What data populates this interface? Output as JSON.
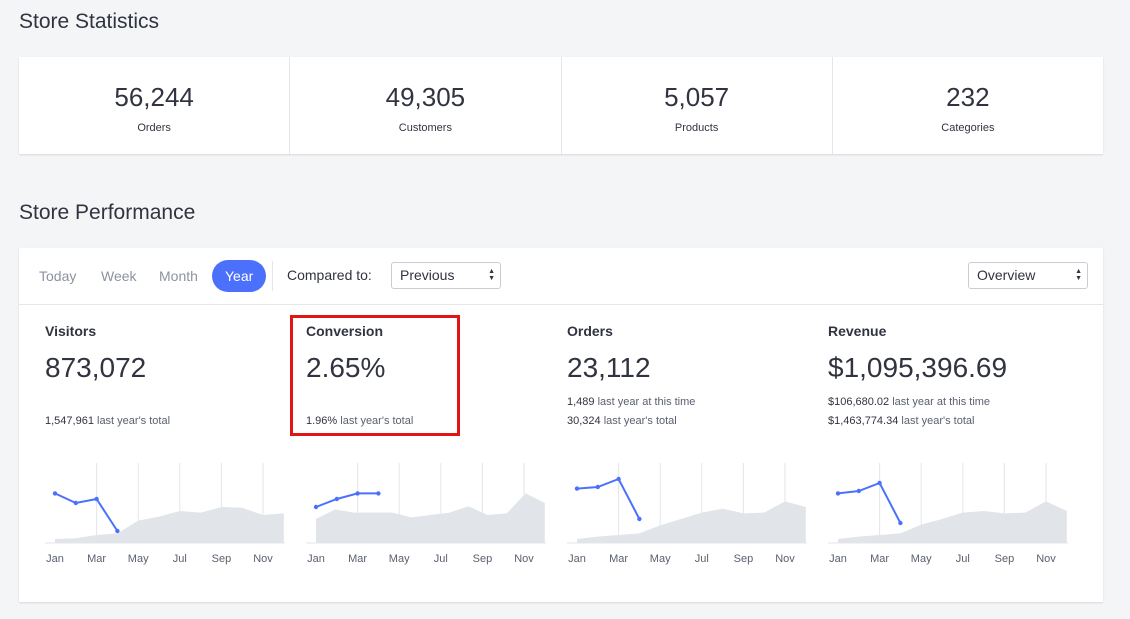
{
  "store_statistics": {
    "title": "Store Statistics",
    "items": [
      {
        "value": "56,244",
        "label": "Orders"
      },
      {
        "value": "49,305",
        "label": "Customers"
      },
      {
        "value": "5,057",
        "label": "Products"
      },
      {
        "value": "232",
        "label": "Categories"
      }
    ]
  },
  "store_performance": {
    "title": "Store Performance",
    "tabs": [
      "Today",
      "Week",
      "Month",
      "Year"
    ],
    "active_tab": "Year",
    "compared_label": "Compared to:",
    "compared_value": "Previous",
    "view_value": "Overview",
    "accent_color": "#4b71fc",
    "highlight_color": "#e01515",
    "month_labels": [
      "Jan",
      "Mar",
      "May",
      "Jul",
      "Sep",
      "Nov"
    ],
    "metrics": [
      {
        "title": "Visitors",
        "value": "873,072",
        "lines": [
          {
            "num": "1,547,961",
            "text": "last year's total"
          }
        ],
        "current": [
          0.62,
          0.5,
          0.55,
          0.15
        ],
        "previous": [
          0.05,
          0.06,
          0.1,
          0.12,
          0.28,
          0.33,
          0.4,
          0.38,
          0.45,
          0.44,
          0.35,
          0.37
        ]
      },
      {
        "title": "Conversion",
        "value": "2.65%",
        "lines": [
          {
            "num": "1.96%",
            "text": "last year's total"
          }
        ],
        "current": [
          0.45,
          0.55,
          0.62,
          0.62
        ],
        "previous": [
          0.3,
          0.42,
          0.38,
          0.38,
          0.38,
          0.32,
          0.35,
          0.38,
          0.46,
          0.35,
          0.37,
          0.62,
          0.5
        ]
      },
      {
        "title": "Orders",
        "value": "23,112",
        "lines": [
          {
            "num": "1,489",
            "text": "last year at this time"
          },
          {
            "num": "30,324",
            "text": "last year's total"
          }
        ],
        "current": [
          0.68,
          0.7,
          0.8,
          0.3
        ],
        "previous": [
          0.05,
          0.08,
          0.1,
          0.12,
          0.22,
          0.3,
          0.38,
          0.43,
          0.37,
          0.38,
          0.52,
          0.45
        ]
      },
      {
        "title": "Revenue",
        "value": "$1,095,396.69",
        "lines": [
          {
            "num": "$106,680.02",
            "text": "last year at this time"
          },
          {
            "num": "$1,463,774.34",
            "text": "last year's total"
          }
        ],
        "current": [
          0.62,
          0.65,
          0.75,
          0.25
        ],
        "previous": [
          0.05,
          0.08,
          0.1,
          0.12,
          0.23,
          0.3,
          0.38,
          0.4,
          0.37,
          0.38,
          0.52,
          0.4
        ]
      }
    ]
  }
}
